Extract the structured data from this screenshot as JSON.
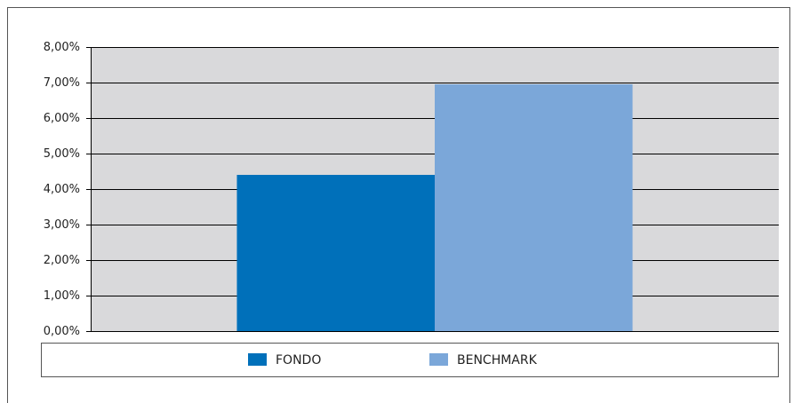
{
  "chart_data": {
    "type": "bar",
    "categories": [
      null
    ],
    "series": [
      {
        "name": "FONDO",
        "color": "#0070ba",
        "values": [
          4.4
        ]
      },
      {
        "name": "BENCHMARK",
        "color": "#7ba7d9",
        "values": [
          6.95
        ]
      }
    ],
    "ylim": [
      0,
      8
    ],
    "yticks": [
      {
        "value": 0,
        "label": "0,00%"
      },
      {
        "value": 1,
        "label": "1,00%"
      },
      {
        "value": 2,
        "label": "2,00%"
      },
      {
        "value": 3,
        "label": "3,00%"
      },
      {
        "value": 4,
        "label": "4,00%"
      },
      {
        "value": 5,
        "label": "5,00%"
      },
      {
        "value": 6,
        "label": "6,00%"
      },
      {
        "value": 7,
        "label": "7,00%"
      },
      {
        "value": 8,
        "label": "8,00%"
      }
    ],
    "grid": true,
    "legend": "bottom"
  }
}
